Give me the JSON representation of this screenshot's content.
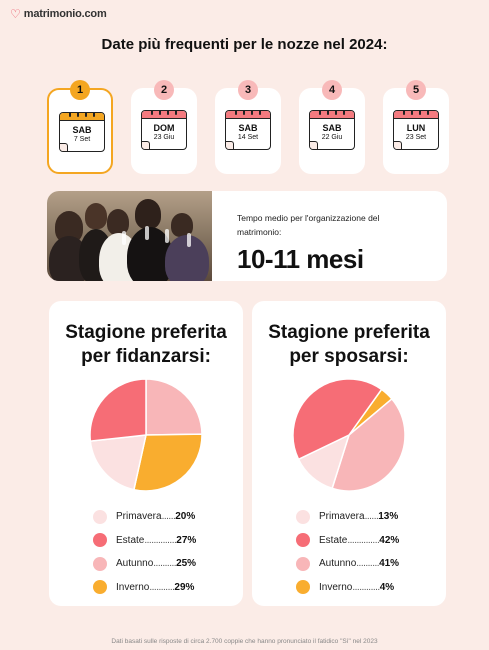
{
  "brand": {
    "name": "matrimonio.com",
    "icon": "heart-icon",
    "color": "#e8475b"
  },
  "title": "Date più frequenti per le nozze nel 2024:",
  "dates": [
    {
      "rank": "1",
      "day": "SAB",
      "date": "7 Set",
      "selected": true
    },
    {
      "rank": "2",
      "day": "DOM",
      "date": "23 Giu",
      "selected": false
    },
    {
      "rank": "3",
      "day": "SAB",
      "date": "14 Set",
      "selected": false
    },
    {
      "rank": "4",
      "day": "SAB",
      "date": "22 Giu",
      "selected": false
    },
    {
      "rank": "5",
      "day": "LUN",
      "date": "23 Set",
      "selected": false
    }
  ],
  "planning": {
    "label": "Tempo medio per l'organizzazione del matrimonio:",
    "value": "10-11 mesi"
  },
  "colors": {
    "primavera": "#fbe1e1",
    "estate": "#f66d76",
    "autunno": "#f8b6b8",
    "inverno": "#f9ad2f",
    "accent": "#f4a621"
  },
  "engagement": {
    "title_line1": "Stagione preferita",
    "title_line2": "per fidanzarsi:",
    "legend": [
      {
        "name": "Primavera",
        "dots": "......",
        "pct": "20%",
        "value": 20,
        "key": "primavera"
      },
      {
        "name": "Estate",
        "dots": "..............",
        "pct": "27%",
        "value": 27,
        "key": "estate"
      },
      {
        "name": "Autunno",
        "dots": "..........",
        "pct": "25%",
        "value": 25,
        "key": "autunno"
      },
      {
        "name": "Inverno",
        "dots": "...........",
        "pct": "29%",
        "value": 29,
        "key": "inverno"
      }
    ]
  },
  "wedding": {
    "title_line1": "Stagione preferita",
    "title_line2": "per sposarsi:",
    "legend": [
      {
        "name": "Primavera",
        "dots": "......",
        "pct": "13%",
        "value": 13,
        "key": "primavera"
      },
      {
        "name": "Estate",
        "dots": "..............",
        "pct": "42%",
        "value": 42,
        "key": "estate"
      },
      {
        "name": "Autunno",
        "dots": "..........",
        "pct": "41%",
        "value": 41,
        "key": "autunno"
      },
      {
        "name": "Inverno",
        "dots": "............",
        "pct": "4%",
        "value": 4,
        "key": "inverno"
      }
    ]
  },
  "chart_data": [
    {
      "type": "pie",
      "title": "Stagione preferita per fidanzarsi:",
      "categories": [
        "Primavera",
        "Estate",
        "Autunno",
        "Inverno"
      ],
      "values": [
        20,
        27,
        25,
        29
      ]
    },
    {
      "type": "pie",
      "title": "Stagione preferita per sposarsi:",
      "categories": [
        "Primavera",
        "Estate",
        "Autunno",
        "Inverno"
      ],
      "values": [
        13,
        42,
        41,
        4
      ]
    }
  ],
  "footnote": "Dati basati sulle risposte di circa 2.700 coppie che hanno pronunciato il fatidico \"Sì\" nel 2023"
}
